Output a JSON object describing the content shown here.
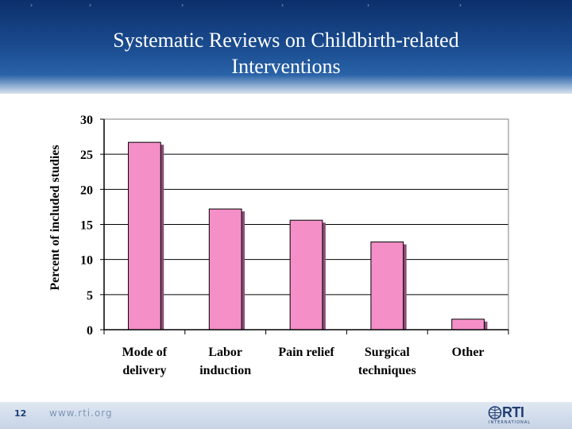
{
  "slide": {
    "title_line1": "Systematic Reviews on Childbirth-related",
    "title_line2": "Interventions",
    "page_number": "12",
    "footer_url": "www.rti.org",
    "logo_text": "RTI",
    "logo_sub": "INTERNATIONAL",
    "colors": {
      "header": "#1c4f93",
      "bar": "#f58fc7",
      "bar_shadow": "#8a4f78"
    }
  },
  "chart_data": {
    "type": "bar",
    "title": "",
    "xlabel": "",
    "ylabel": "Percent of included studies",
    "ylim": [
      0,
      30
    ],
    "yticks": [
      0,
      5,
      10,
      15,
      20,
      25,
      30
    ],
    "grid": true,
    "categories": [
      [
        "Mode of",
        "delivery"
      ],
      [
        "Labor",
        "induction"
      ],
      [
        "Pain relief"
      ],
      [
        "Surgical",
        "techniques"
      ],
      [
        "Other"
      ]
    ],
    "values": [
      26.7,
      17.2,
      15.6,
      12.5,
      1.5
    ]
  }
}
